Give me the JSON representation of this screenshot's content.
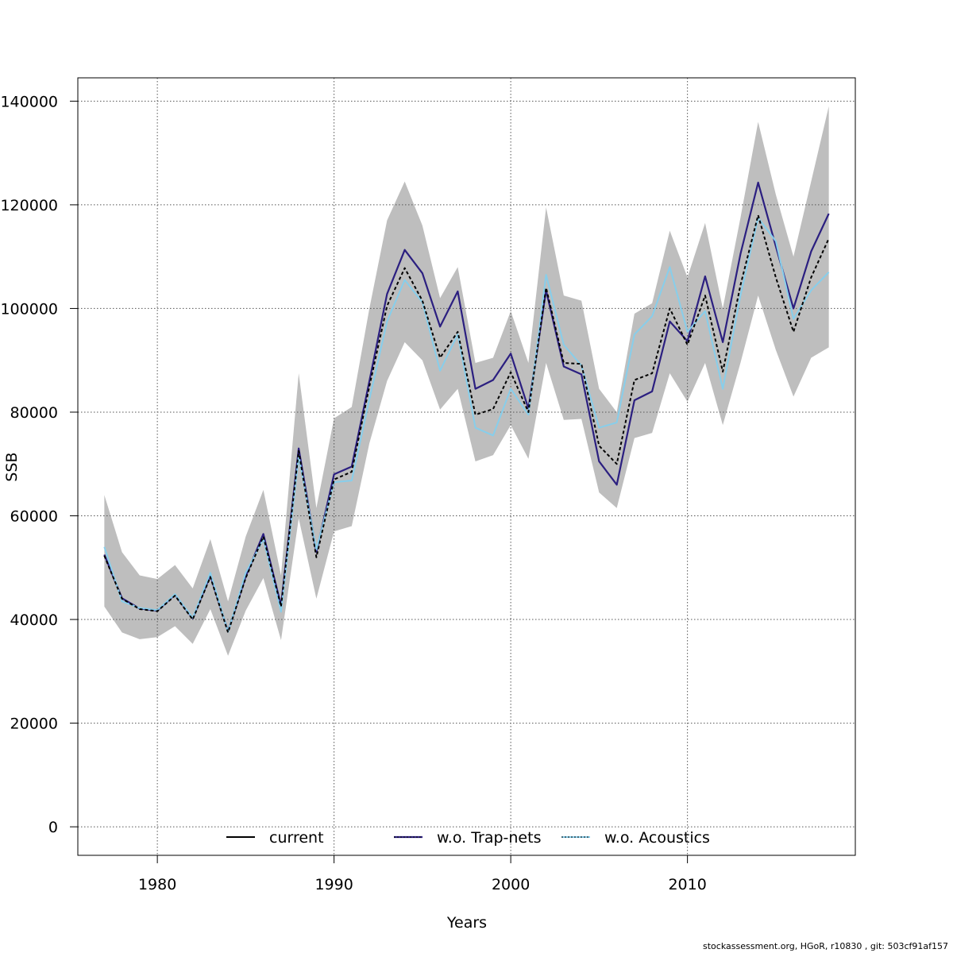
{
  "chart_data": {
    "type": "line",
    "title": "",
    "xlabel": "Years",
    "ylabel": "SSB",
    "xlim": [
      1975.5,
      2019.5
    ],
    "ylim": [
      -5500,
      144500
    ],
    "grid": true,
    "x_ticks": [
      1980,
      1990,
      2000,
      2010
    ],
    "y_ticks": [
      0,
      20000,
      40000,
      60000,
      80000,
      100000,
      120000,
      140000
    ],
    "legend_position": "bottom",
    "years": [
      1977,
      1978,
      1979,
      1980,
      1981,
      1982,
      1983,
      1984,
      1985,
      1986,
      1987,
      1988,
      1989,
      1990,
      1991,
      1992,
      1993,
      1994,
      1995,
      1996,
      1997,
      1998,
      1999,
      2000,
      2001,
      2002,
      2003,
      2004,
      2005,
      2006,
      2007,
      2008,
      2009,
      2010,
      2011,
      2012,
      2013,
      2014,
      2015,
      2016,
      2017,
      2018
    ],
    "confidence_band": {
      "color": "#bebebe",
      "upper": [
        64000,
        53000,
        48500,
        47800,
        50500,
        46000,
        55500,
        43500,
        56000,
        65000,
        48500,
        87500,
        61500,
        78800,
        81000,
        100000,
        117000,
        124500,
        116000,
        102000,
        108000,
        89500,
        90500,
        99500,
        89500,
        119500,
        102500,
        101500,
        84500,
        80000,
        99000,
        101000,
        115000,
        106000,
        116500,
        100000,
        117500,
        136000,
        122000,
        110000,
        124500,
        139000
      ],
      "lower": [
        42500,
        37500,
        36200,
        36600,
        38700,
        35300,
        42000,
        33000,
        41700,
        48000,
        36000,
        59500,
        44000,
        57000,
        58000,
        74000,
        86000,
        93500,
        90000,
        80500,
        84500,
        70500,
        71700,
        77500,
        71000,
        89500,
        78500,
        78700,
        64500,
        61500,
        75000,
        76000,
        87500,
        82000,
        89500,
        77500,
        89500,
        102500,
        92000,
        83000,
        90500,
        92500
      ]
    },
    "series": [
      {
        "name": "current",
        "color": "#000000",
        "values": [
          52300,
          44000,
          42000,
          41600,
          44600,
          40000,
          48200,
          37500,
          48000,
          56000,
          42500,
          72500,
          52000,
          67000,
          68500,
          85000,
          100500,
          107800,
          101500,
          90500,
          95500,
          79500,
          80600,
          87700,
          80000,
          104000,
          89500,
          89300,
          73500,
          70000,
          86200,
          87500,
          100000,
          93000,
          102500,
          87800,
          104500,
          118000,
          106000,
          95500,
          106000,
          113500
        ]
      },
      {
        "name": "w.o. Trap-nets",
        "color": "#2b1f80",
        "values": [
          52500,
          44100,
          42100,
          41700,
          44800,
          40200,
          48500,
          37700,
          48300,
          56500,
          42700,
          73000,
          53000,
          68000,
          69500,
          86000,
          102800,
          111300,
          106800,
          96500,
          103300,
          84500,
          86200,
          91300,
          80700,
          103500,
          88800,
          87300,
          70500,
          66000,
          82300,
          84000,
          97500,
          93700,
          106200,
          93500,
          110500,
          124300,
          112000,
          100000,
          111000,
          118300
        ]
      },
      {
        "name": "w.o. Acoustics",
        "color": "#87ceeb",
        "values": [
          54000,
          43500,
          42200,
          41800,
          44900,
          40300,
          49000,
          37600,
          49000,
          55500,
          41500,
          71500,
          53500,
          66500,
          66800,
          82500,
          97500,
          105500,
          101200,
          88000,
          95000,
          77000,
          75500,
          84500,
          79500,
          106500,
          93000,
          89000,
          77000,
          78000,
          95000,
          98500,
          108000,
          95500,
          99500,
          84500,
          102500,
          117500,
          113000,
          98000,
          103500,
          107000
        ]
      }
    ]
  },
  "legend": {
    "items": [
      {
        "label": "current"
      },
      {
        "label": "w.o. Trap-nets"
      },
      {
        "label": "w.o. Acoustics"
      }
    ]
  },
  "footer": "stockassessment.org, HGoR, r10830 , git: 503cf91af157"
}
